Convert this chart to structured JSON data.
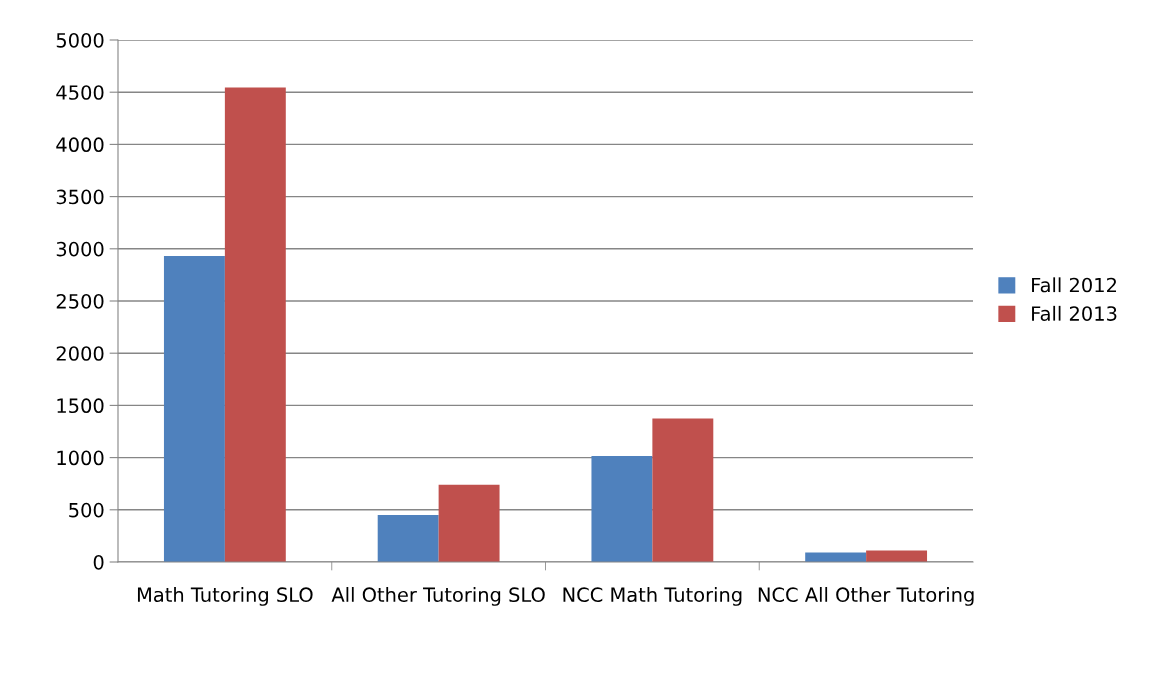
{
  "chart_data": {
    "type": "bar",
    "categories": [
      "Math Tutoring SLO",
      "All Other Tutoring SLO",
      "NCC Math Tutoring",
      "NCC All Other Tutoring"
    ],
    "series": [
      {
        "name": "Fall 2012",
        "color": "#4f81bd",
        "values": [
          2930,
          450,
          1015,
          90
        ]
      },
      {
        "name": "Fall 2013",
        "color": "#c0504d",
        "values": [
          4545,
          740,
          1375,
          110
        ]
      }
    ],
    "ylim": [
      0,
      5000
    ],
    "yticks": [
      0,
      500,
      1000,
      1500,
      2000,
      2500,
      3000,
      3500,
      4000,
      4500,
      5000
    ],
    "grid": "y",
    "legend": "right"
  }
}
